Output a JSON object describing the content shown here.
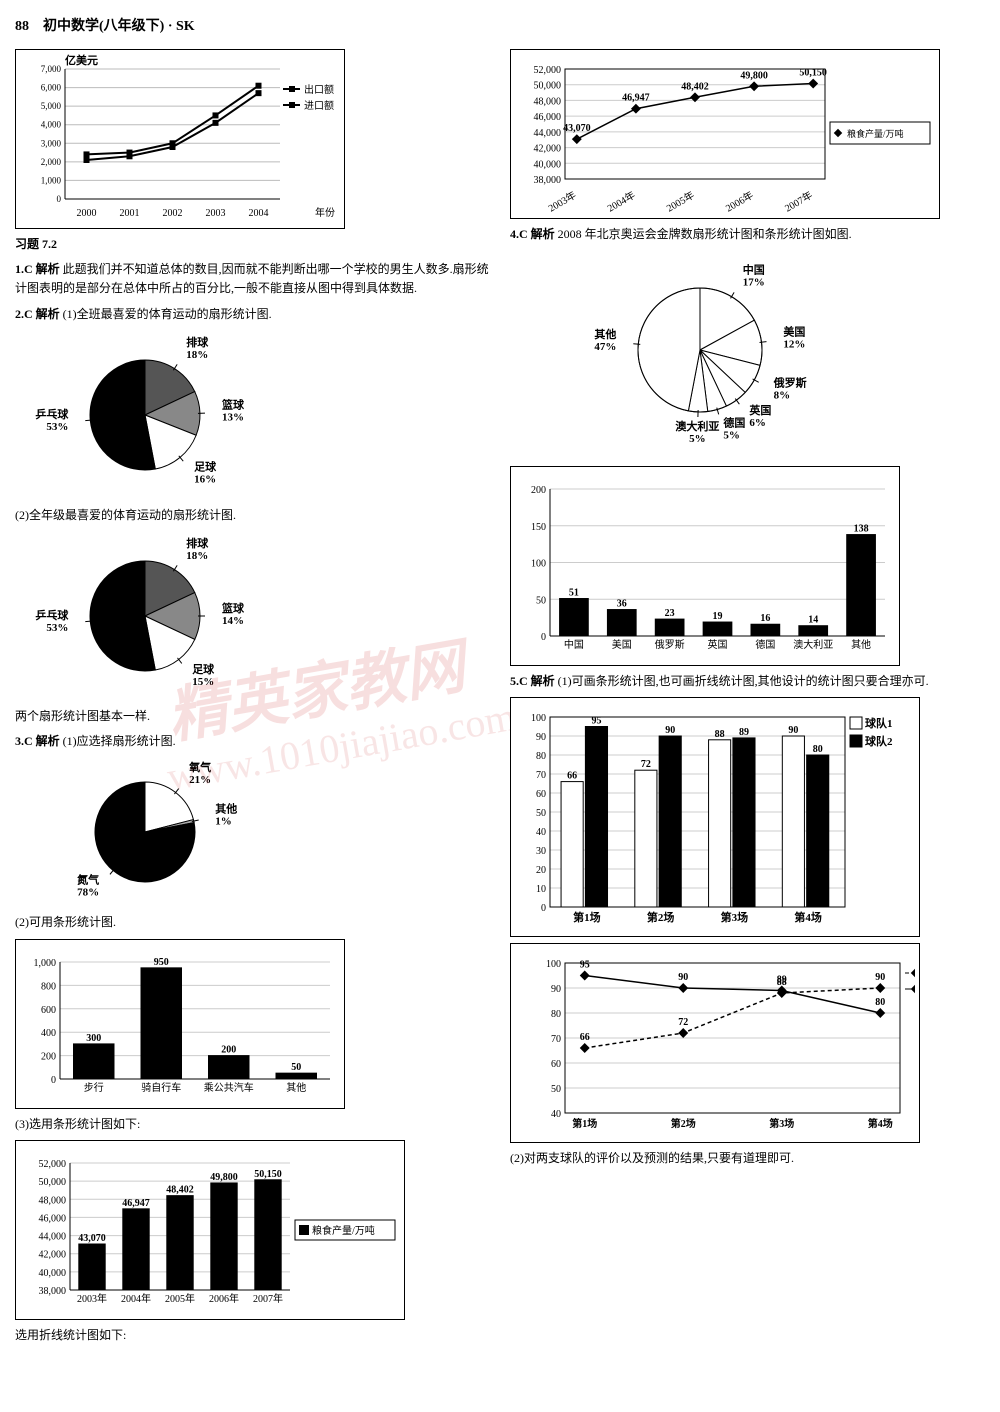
{
  "page_number": "88",
  "page_title": "初中数学(八年级下) · SK",
  "section_title": "习题 7.2",
  "chart_export": {
    "type": "line",
    "ylabel": "亿美元",
    "xlabel": "年份",
    "categories": [
      "2000",
      "2001",
      "2002",
      "2003",
      "2004"
    ],
    "ytick_step": 1000,
    "ylim": [
      0,
      7000
    ],
    "series": [
      {
        "name": "出口额",
        "values": [
          2400,
          2500,
          3000,
          4500,
          6100
        ],
        "color": "#000000",
        "marker": "square"
      },
      {
        "name": "进口额",
        "values": [
          2100,
          2300,
          2800,
          4100,
          5700
        ],
        "color": "#000000",
        "marker": "diamond"
      }
    ],
    "grid_color": "#bbbbbb",
    "background": "#ffffff"
  },
  "q1": {
    "label": "1.C 解析",
    "text": "此题我们并不知道总体的数目,因而就不能判断出哪一个学校的男生人数多.扇形统计图表明的是部分在总体中所占的百分比,一般不能直接从图中得到具体数据."
  },
  "q2": {
    "label": "2.C 解析",
    "intro": "(1)全班最喜爱的体育运动的扇形统计图.",
    "pie1": {
      "type": "pie",
      "slices": [
        {
          "label": "排球",
          "pct": 18,
          "color": "#555555"
        },
        {
          "label": "篮球",
          "pct": 13,
          "color": "#888888"
        },
        {
          "label": "足球",
          "pct": 16,
          "color": "#ffffff"
        },
        {
          "label": "乒乓球",
          "pct": 53,
          "color": "#000000"
        }
      ]
    },
    "mid": "(2)全年级最喜爱的体育运动的扇形统计图.",
    "pie2": {
      "type": "pie",
      "slices": [
        {
          "label": "排球",
          "pct": 18,
          "color": "#555555"
        },
        {
          "label": "篮球",
          "pct": 14,
          "color": "#888888"
        },
        {
          "label": "足球",
          "pct": 15,
          "color": "#ffffff"
        },
        {
          "label": "乒乓球",
          "pct": 53,
          "color": "#000000"
        }
      ]
    },
    "conclusion": "两个扇形统计图基本一样."
  },
  "q3": {
    "label": "3.C 解析",
    "part1": "(1)应选择扇形统计图.",
    "pie_air": {
      "type": "pie",
      "slices": [
        {
          "label": "氧气",
          "pct": 21,
          "color": "#ffffff"
        },
        {
          "label": "其他",
          "pct": 1,
          "color": "#aaaaaa"
        },
        {
          "label": "氮气",
          "pct": 78,
          "color": "#000000"
        }
      ]
    },
    "part2": "(2)可用条形统计图.",
    "bar_transport": {
      "type": "bar",
      "ylim": [
        0,
        1000
      ],
      "ytick_step": 200,
      "categories": [
        "步行",
        "骑自行车",
        "乘公共汽车",
        "其他"
      ],
      "values": [
        300,
        950,
        200,
        50
      ],
      "bar_color": "#000000",
      "grid_color": "#cccccc"
    },
    "part3": "(3)选用条形统计图如下:",
    "bar_grain": {
      "type": "bar",
      "ylim": [
        38000,
        52000
      ],
      "ytick_step": 2000,
      "categories": [
        "2003年",
        "2004年",
        "2005年",
        "2006年",
        "2007年"
      ],
      "values": [
        43070,
        46947,
        48402,
        49800,
        50150
      ],
      "bar_color": "#000000",
      "legend": "粮食产量/万吨",
      "grid_color": "#cccccc"
    },
    "part4": "选用折线统计图如下:"
  },
  "line_grain": {
    "type": "line",
    "ylim": [
      38000,
      52000
    ],
    "ytick_step": 2000,
    "categories": [
      "2003年",
      "2004年",
      "2005年",
      "2006年",
      "2007年"
    ],
    "values": [
      43070,
      46947,
      48402,
      49800,
      50150
    ],
    "legend": "粮食产量/万吨",
    "color": "#000000",
    "marker": "diamond",
    "grid_color": "#cccccc"
  },
  "q4": {
    "label": "4.C 解析",
    "text": "2008 年北京奥运会金牌数扇形统计图和条形统计图如图.",
    "pie_medals": {
      "type": "pie",
      "slices": [
        {
          "label": "中国",
          "pct": 17,
          "color": "#ffffff"
        },
        {
          "label": "美国",
          "pct": 12,
          "color": "#ffffff"
        },
        {
          "label": "俄罗斯",
          "pct": 8,
          "color": "#ffffff"
        },
        {
          "label": "英国",
          "pct": 6,
          "color": "#ffffff"
        },
        {
          "label": "德国",
          "pct": 5,
          "color": "#ffffff"
        },
        {
          "label": "澳大利亚",
          "pct": 5,
          "color": "#ffffff"
        },
        {
          "label": "其他",
          "pct": 47,
          "color": "#ffffff"
        }
      ]
    },
    "bar_medals": {
      "type": "bar",
      "ylim": [
        0,
        200
      ],
      "ytick_step": 50,
      "categories": [
        "中国",
        "美国",
        "俄罗斯",
        "英国",
        "德国",
        "澳大利亚",
        "其他"
      ],
      "values": [
        51,
        36,
        23,
        19,
        16,
        14,
        138
      ],
      "bar_color": "#000000"
    }
  },
  "q5": {
    "label": "5.C 解析",
    "intro": "(1)可画条形统计图,也可画折线统计图,其他设计的统计图只要合理亦可.",
    "bar_teams": {
      "type": "grouped_bar",
      "ylim": [
        0,
        100
      ],
      "ytick_step": 10,
      "categories": [
        "第1场",
        "第2场",
        "第3场",
        "第4场"
      ],
      "series": [
        {
          "name": "球队1",
          "values": [
            66,
            72,
            88,
            90
          ],
          "color": "#ffffff"
        },
        {
          "name": "球队2",
          "values": [
            95,
            90,
            89,
            80
          ],
          "color": "#000000"
        }
      ]
    },
    "line_teams": {
      "type": "line",
      "ylim": [
        40,
        100
      ],
      "ytick_step": 10,
      "categories": [
        "第1场",
        "第2场",
        "第3场",
        "第4场"
      ],
      "series": [
        {
          "name": "球队1",
          "values": [
            66,
            72,
            88,
            90
          ],
          "color": "#000000",
          "dash": "4 3",
          "marker": "diamond"
        },
        {
          "name": "球队2",
          "values": [
            95,
            90,
            89,
            80
          ],
          "color": "#000000",
          "dash": "none",
          "marker": "square"
        }
      ]
    },
    "part2": "(2)对两支球队的评价以及预测的结果,只要有道理即可."
  },
  "watermark_main": "精英家教网",
  "watermark_url": "www.1010jiajiao.com"
}
